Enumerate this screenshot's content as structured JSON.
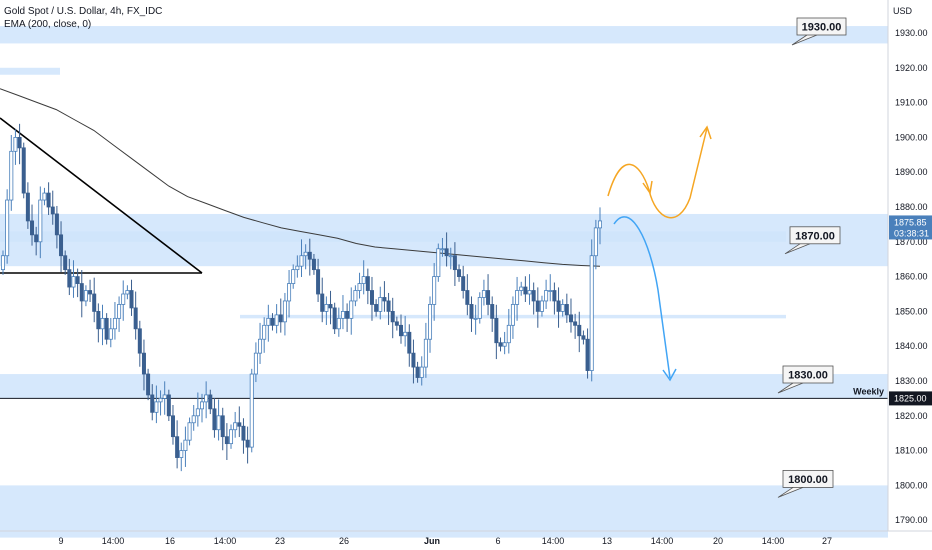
{
  "header": {
    "symbol_line": "Gold Spot / U.S. Dollar, 4h, FX_IDC",
    "indicator_line": "EMA (200, close, 0)"
  },
  "chart_data": {
    "type": "candlestick",
    "title": "Gold Spot / U.S. Dollar, 4h, FX_IDC",
    "indicator": "EMA (200, close, 0)",
    "ylabel": "USD",
    "ylim": [
      1785,
      1935
    ],
    "y_ticks": [
      1790,
      1800,
      1810,
      1820,
      1830,
      1840,
      1850,
      1860,
      1870,
      1880,
      1890,
      1900,
      1910,
      1920,
      1930
    ],
    "x_tick_labels": [
      "9",
      "14:00",
      "16",
      "14:00",
      "23",
      "26",
      "Jun",
      "6",
      "14:00",
      "13",
      "14:00",
      "20",
      "14:00",
      "27"
    ],
    "grid": false,
    "colors": {
      "up": "#4a80bb",
      "down": "#3a5f8f",
      "zone": "#cfe4fb",
      "ema": "#3b3b3b",
      "orange_path": "#f5a623",
      "blue_path": "#42a5f5"
    },
    "close_series": [
      1866,
      1882,
      1896,
      1900,
      1897,
      1884,
      1876,
      1872,
      1870,
      1882,
      1884,
      1880,
      1878,
      1872,
      1866,
      1862,
      1857,
      1860,
      1858,
      1853,
      1856,
      1855,
      1850,
      1845,
      1848,
      1842,
      1845,
      1848,
      1852,
      1855,
      1856,
      1851,
      1845,
      1838,
      1832,
      1826,
      1821,
      1824,
      1825,
      1826,
      1820,
      1814,
      1808,
      1810,
      1813,
      1818,
      1820,
      1822,
      1824,
      1826,
      1822,
      1816,
      1820,
      1814,
      1812,
      1816,
      1818,
      1817,
      1813,
      1811,
      1832,
      1838,
      1842,
      1846,
      1848,
      1846,
      1849,
      1847,
      1853,
      1858,
      1862,
      1863,
      1866,
      1867,
      1865,
      1862,
      1855,
      1850,
      1852,
      1851,
      1845,
      1848,
      1850,
      1848,
      1853,
      1856,
      1858,
      1860,
      1856,
      1852,
      1850,
      1854,
      1853,
      1850,
      1847,
      1846,
      1843,
      1844,
      1838,
      1834,
      1831,
      1834,
      1842,
      1852,
      1860,
      1868,
      1868,
      1866,
      1866,
      1862,
      1860,
      1856,
      1852,
      1848,
      1848,
      1854,
      1856,
      1852,
      1848,
      1841,
      1840,
      1841,
      1846,
      1852,
      1856,
      1857,
      1855,
      1856,
      1853,
      1850,
      1853,
      1856,
      1856,
      1853,
      1850,
      1852,
      1849,
      1847,
      1846,
      1843,
      1842,
      1833,
      1866,
      1874,
      1876
    ],
    "ema_series": [
      1914,
      1912,
      1910,
      1908,
      1905,
      1902,
      1898,
      1894,
      1890,
      1886,
      1883,
      1881,
      1879,
      1877,
      1875.5,
      1874,
      1873,
      1872,
      1871,
      1869.5,
      1868.5,
      1868,
      1867.5,
      1867,
      1866.5,
      1866,
      1865.5,
      1865,
      1864.5,
      1864,
      1863.5,
      1863.2,
      1863
    ],
    "levels": [
      {
        "label": "1930.00",
        "value": 1930
      },
      {
        "label": "1870.00",
        "value": 1870
      },
      {
        "label": "1830.00",
        "value": 1830
      },
      {
        "label": "1800.00",
        "value": 1800
      }
    ],
    "weekly_level": {
      "label": "Weekly",
      "value": 1825,
      "price_label": "1825.00"
    },
    "current_price": {
      "price": "1875.85",
      "countdown": "03:38:31",
      "value": 1875.85
    },
    "zones": [
      {
        "y_top": 1932,
        "y_bottom": 1927
      },
      {
        "y_top": 1920,
        "y_bottom": 1918
      },
      {
        "y_top": 1878,
        "y_bottom": 1863
      },
      {
        "y_top": 1873,
        "y_bottom": 1870
      },
      {
        "y_top": 1849,
        "y_bottom": 1848
      },
      {
        "y_top": 1832,
        "y_bottom": 1825
      },
      {
        "y_top": 1800,
        "y_bottom": 1785
      }
    ]
  }
}
